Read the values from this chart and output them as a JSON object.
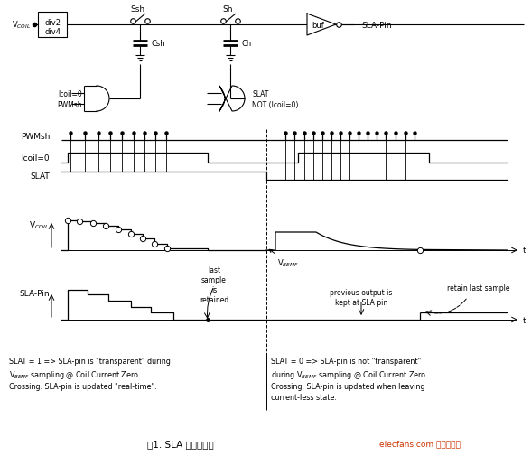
{
  "fig_width": 5.88,
  "fig_height": 5.06,
  "dpi": 100,
  "bg_color": "#ffffff",
  "title": "图1. SLA 引脚时序图",
  "elecfans_label": "elecfans.com 电子发烧友",
  "elecfans_color": "#cc3300",
  "annotation_left": "SLAT = 1 => SLA-pin is \"transparent\" during\nVBEMF sampling @ Coil Current Zero\nCrossing. SLA-pin is updated \"real-time\".",
  "annotation_right": "SLAT = 0 => SLA-pin is not \"transparent\"\nduring VBEMF sampling @ Coil Current Zero\nCrossing. SLA-pin is updated when leaving\ncurrent-less state."
}
